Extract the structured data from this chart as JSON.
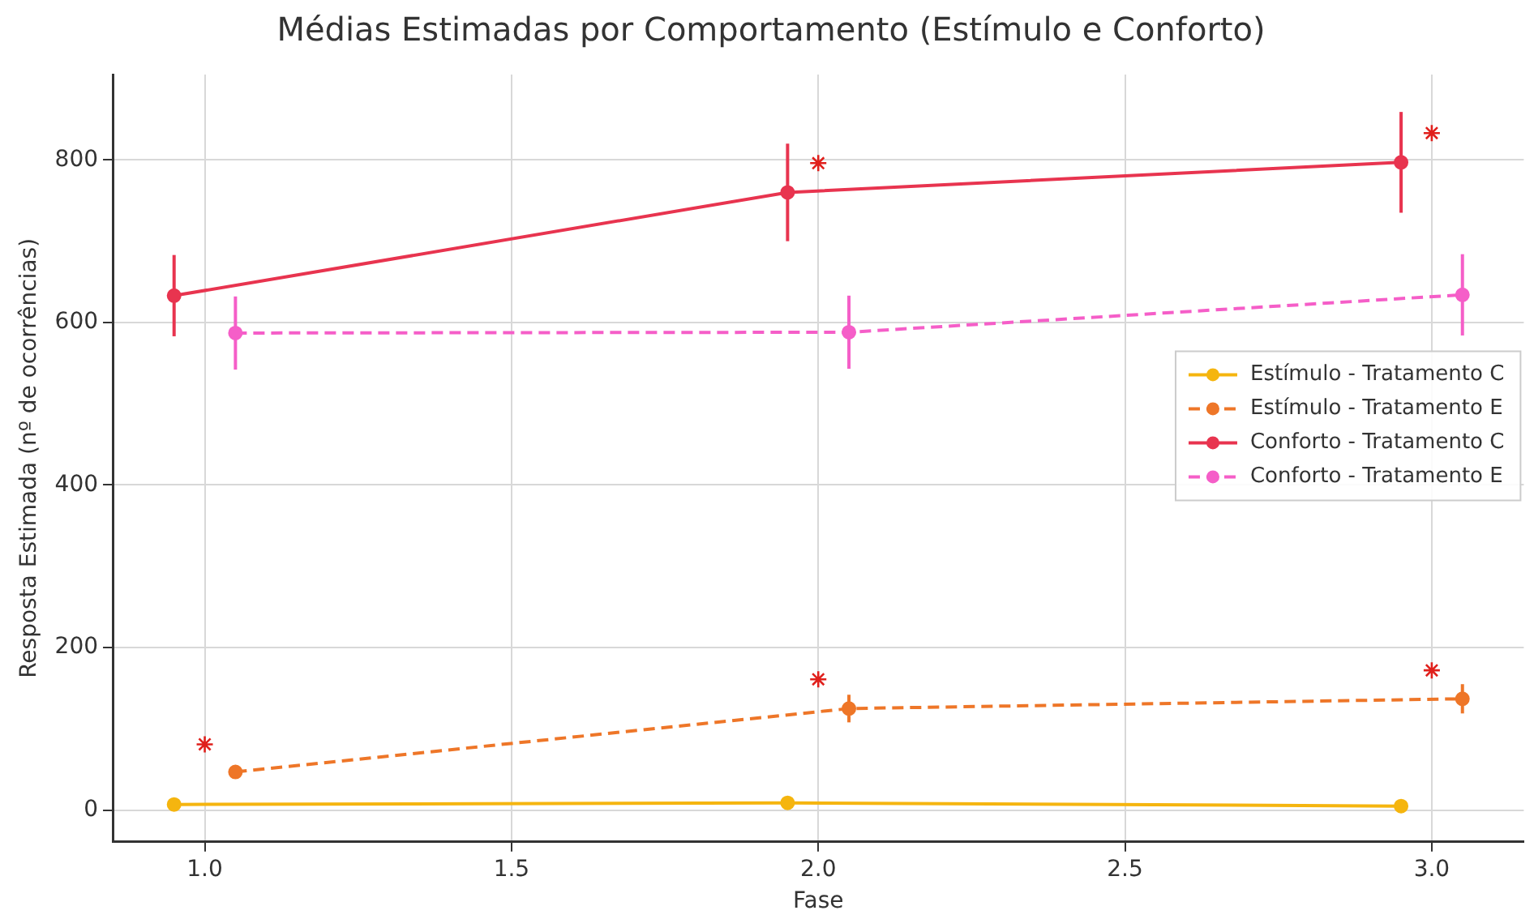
{
  "chart_data": {
    "type": "line",
    "title": "Médias Estimadas por Comportamento (Estímulo e Conforto)",
    "xlabel": "Fase",
    "ylabel": "Resposta Estimada (nº de ocorrências)",
    "xlim": [
      0.85,
      3.15
    ],
    "xticks": [
      {
        "value": 1,
        "label": "1.0"
      },
      {
        "value": 1.5,
        "label": "1.5"
      },
      {
        "value": 2,
        "label": "2.0"
      },
      {
        "value": 2.5,
        "label": "2.5"
      },
      {
        "value": 3,
        "label": "3.0"
      }
    ],
    "ylim": [
      -39,
      905
    ],
    "yticks": [
      0,
      200,
      400,
      600,
      800
    ],
    "grid": true,
    "legend": "right",
    "marker": "circle",
    "series": [
      {
        "name": "Estímulo - Tratamento C",
        "color": "#f5b50f",
        "line_style": "solid",
        "x": [
          0.95,
          1.95,
          2.95
        ],
        "values": [
          7,
          9,
          5
        ],
        "errors": [
          null,
          null,
          null
        ]
      },
      {
        "name": "Estímulo - Tratamento E",
        "color": "#ee7628",
        "line_style": "dashed",
        "x": [
          1.05,
          2.05,
          3.05
        ],
        "values": [
          47,
          125,
          137
        ],
        "errors": [
          null,
          17,
          18
        ]
      },
      {
        "name": "Conforto - Tratamento C",
        "color": "#e8344f",
        "line_style": "solid",
        "x": [
          0.95,
          1.95,
          2.95
        ],
        "values": [
          633,
          760,
          797
        ],
        "errors": [
          50,
          60,
          62
        ]
      },
      {
        "name": "Conforto - Tratamento E",
        "color": "#f55ec8",
        "line_style": "dashed",
        "x": [
          1.05,
          2.05,
          3.05
        ],
        "values": [
          587,
          588,
          634
        ],
        "errors": [
          45,
          45,
          50
        ]
      },
      {
        "type": "scatter",
        "marker": "cross",
        "color": "#e0201c",
        "x": [
          1,
          2,
          3,
          2,
          3
        ],
        "values": [
          81,
          796,
          833,
          161,
          172
        ]
      }
    ]
  }
}
